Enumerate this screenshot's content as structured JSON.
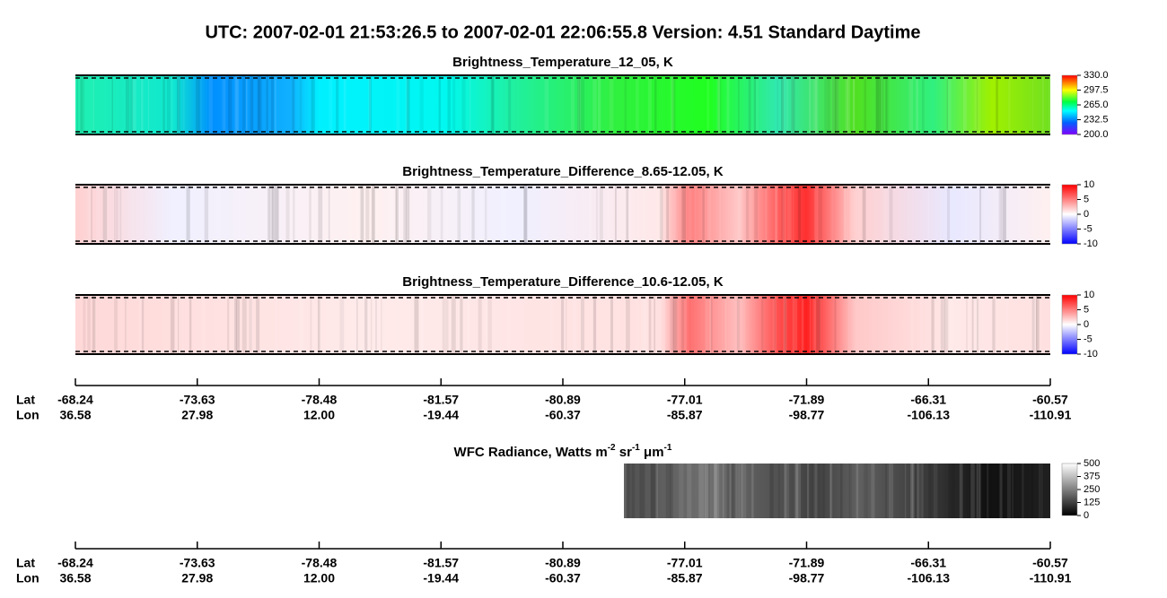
{
  "header": {
    "title": "UTC:  2007-02-01   21:53:26.5  to  2007-02-01   22:06:55.8    Version: 4.51  Standard Daytime"
  },
  "panels": [
    {
      "title": "Brightness_Temperature_12_05, K",
      "colorbar": [
        "330.0",
        "297.5",
        "265.0",
        "232.5",
        "200.0"
      ]
    },
    {
      "title": "Brightness_Temperature_Difference_8.65-12.05, K",
      "colorbar": [
        "10",
        "5",
        "0",
        "-5",
        "-10"
      ]
    },
    {
      "title": "Brightness_Temperature_Difference_10.6-12.05, K",
      "colorbar": [
        "10",
        "5",
        "0",
        "-5",
        "-10"
      ]
    }
  ],
  "wfc": {
    "title": [
      "WFC Radiance, Watts m",
      "-2",
      " sr",
      "-1",
      " μm",
      "-1"
    ],
    "colorbar": [
      "500",
      "375",
      "250",
      "125",
      "0"
    ]
  },
  "axes": [
    {
      "lat_label": "Lat",
      "lon_label": "Lon",
      "lat": [
        "-68.24",
        "-73.63",
        "-78.48",
        "-81.57",
        "-80.89",
        "-77.01",
        "-71.89",
        "-66.31",
        "-60.57"
      ],
      "lon": [
        "36.58",
        "27.98",
        "12.00",
        "-19.44",
        "-60.37",
        "-85.87",
        "-98.77",
        "-106.13",
        "-110.91"
      ]
    },
    {
      "lat_label": "Lat",
      "lon_label": "Lon",
      "lat": [
        "-68.24",
        "-73.63",
        "-78.48",
        "-81.57",
        "-80.89",
        "-77.01",
        "-71.89",
        "-66.31",
        "-60.57"
      ],
      "lon": [
        "36.58",
        "27.98",
        "12.00",
        "-19.44",
        "-60.37",
        "-85.87",
        "-98.77",
        "-106.13",
        "-110.91"
      ]
    }
  ]
}
